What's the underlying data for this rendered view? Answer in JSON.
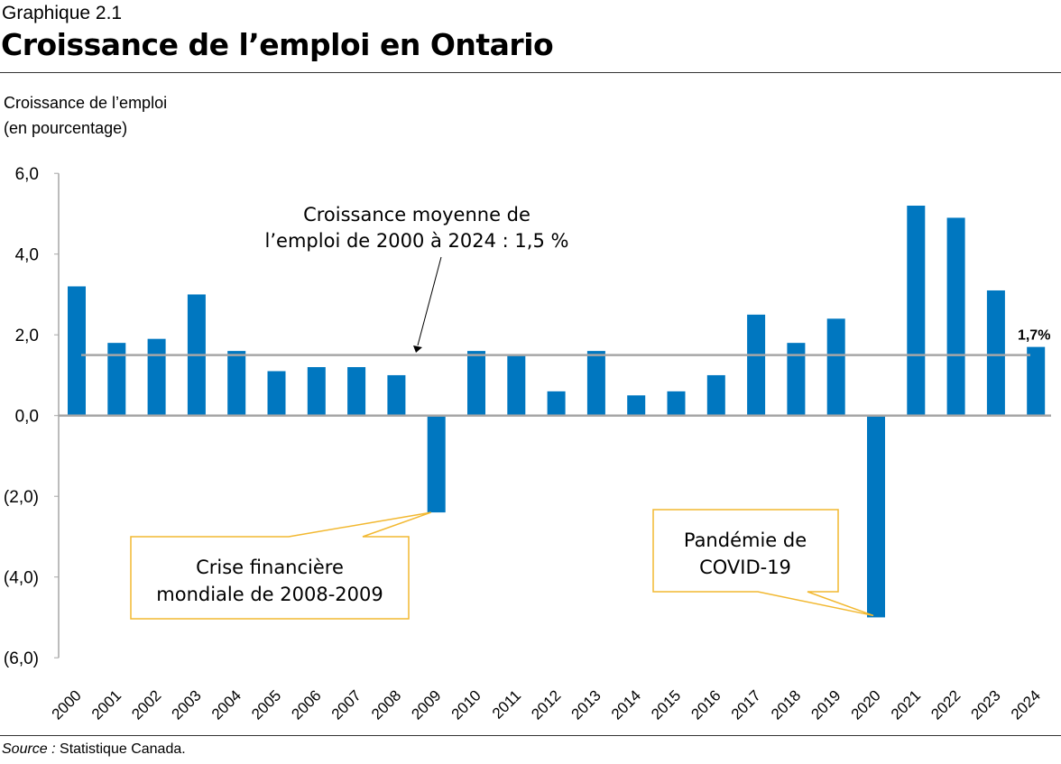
{
  "header": {
    "subtitle": "Graphique 2.1",
    "title": "Croissance de l’emploi en Ontario"
  },
  "chart_data": {
    "type": "bar",
    "title": "Croissance de l’emploi en Ontario",
    "ylabel_lines": [
      "Croissance de l’emploi",
      "(en pourcentage)"
    ],
    "xlabel": "",
    "ylim": [
      -6,
      6
    ],
    "yticks": [
      6,
      4,
      2,
      0,
      -2,
      -4,
      -6
    ],
    "ytick_labels": [
      "6,0",
      "4,0",
      "2,0",
      "0,0",
      "(2,0)",
      "(4,0)",
      "(6,0)"
    ],
    "categories": [
      "2000",
      "2001",
      "2002",
      "2003",
      "2004",
      "2005",
      "2006",
      "2007",
      "2008",
      "2009",
      "2010",
      "2011",
      "2012",
      "2013",
      "2014",
      "2015",
      "2016",
      "2017",
      "2018",
      "2019",
      "2020",
      "2021",
      "2022",
      "2023",
      "2024"
    ],
    "values": [
      3.2,
      1.8,
      1.9,
      3.0,
      1.6,
      1.1,
      1.2,
      1.2,
      1.0,
      -2.4,
      1.6,
      1.5,
      0.6,
      1.6,
      0.5,
      0.6,
      1.0,
      2.5,
      1.8,
      2.4,
      -5.0,
      5.2,
      4.9,
      3.1,
      1.7
    ],
    "bar_color": "#0077C0",
    "average": {
      "value": 1.5,
      "color": "#A6A6A6",
      "label_lines": [
        "Croissance moyenne de",
        "l’emploi de 2000 à 2024 : 1,5 %"
      ]
    },
    "data_labels": [
      {
        "category": "2024",
        "text": "1,7%"
      }
    ],
    "callouts": [
      {
        "target": "2009",
        "lines": [
          "Crise financière",
          "mondiale de 2008-2009"
        ]
      },
      {
        "target": "2020",
        "lines": [
          "Pandémie de",
          "COVID-19"
        ]
      }
    ],
    "callout_color": "#F2B830",
    "grid": false,
    "legend": "none"
  },
  "footer": {
    "source_label": "Source :",
    "source_text": " Statistique Canada."
  }
}
